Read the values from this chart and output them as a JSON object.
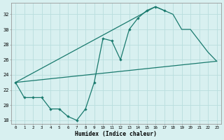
{
  "xlabel": "Humidex (Indice chaleur)",
  "series": {
    "curve1_x": [
      0,
      1,
      2,
      3,
      4,
      5,
      6,
      7,
      8,
      9,
      10,
      11,
      12,
      13,
      14,
      15,
      16,
      17
    ],
    "curve1_y": [
      23,
      21,
      21,
      21,
      19.5,
      19.5,
      18.5,
      18,
      19.5,
      23,
      28.8,
      28.5,
      26.0,
      30.0,
      31.5,
      32.5,
      33.0,
      32.5
    ],
    "curve2_x": [
      0,
      23
    ],
    "curve2_y": [
      23,
      25.8
    ],
    "curve3_x": [
      0,
      16,
      17,
      18,
      19,
      20,
      21,
      22,
      23
    ],
    "curve3_y": [
      23,
      33.0,
      32.5,
      32.0,
      30.0,
      30.0,
      28.5,
      27.0,
      25.8
    ]
  },
  "line_color": "#1a7a6e",
  "bg_color": "#d8f0f0",
  "grid_color": "#b8dede",
  "ylim": [
    17.5,
    33.5
  ],
  "xlim": [
    -0.5,
    23.5
  ],
  "yticks": [
    18,
    20,
    22,
    24,
    26,
    28,
    30,
    32
  ],
  "xticks": [
    0,
    1,
    2,
    3,
    4,
    5,
    6,
    7,
    8,
    9,
    10,
    11,
    12,
    13,
    14,
    15,
    16,
    17,
    18,
    19,
    20,
    21,
    22,
    23
  ]
}
